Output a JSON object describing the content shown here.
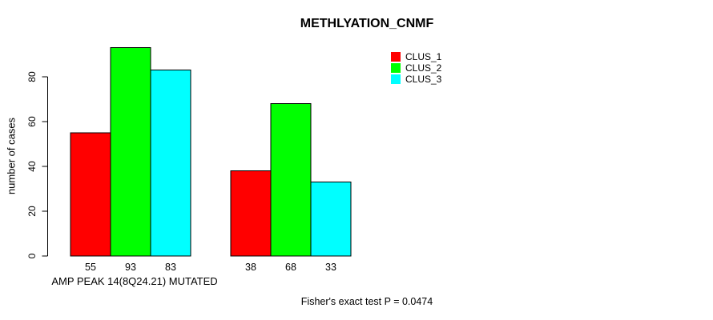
{
  "page": {
    "background": "#FFFFFF",
    "text_color": "#000000"
  },
  "chart_data": {
    "type": "bar",
    "title": "METHLYATION_CNMF",
    "ylabel": "number of cases",
    "xlabel": "AMP PEAK 14(8Q24.21) MUTATED",
    "footnote": "Fisher's exact test P = 0.0474",
    "categories": [
      "",
      ""
    ],
    "series": [
      {
        "name": "CLUS_1",
        "color": "#FF0000",
        "values": [
          55,
          38
        ]
      },
      {
        "name": "CLUS_2",
        "color": "#00FF00",
        "values": [
          93,
          68
        ]
      },
      {
        "name": "CLUS_3",
        "color": "#00FFFF",
        "values": [
          83,
          33
        ]
      }
    ],
    "bar_value_labels": [
      [
        55,
        93,
        83
      ],
      [
        38,
        68,
        33
      ]
    ],
    "yticks": [
      0,
      20,
      40,
      60,
      80
    ],
    "ylim": [
      0,
      95
    ],
    "grid": false,
    "legend_position": "top-right",
    "axis_color": "#000000",
    "bar_border_color": "#000000"
  }
}
